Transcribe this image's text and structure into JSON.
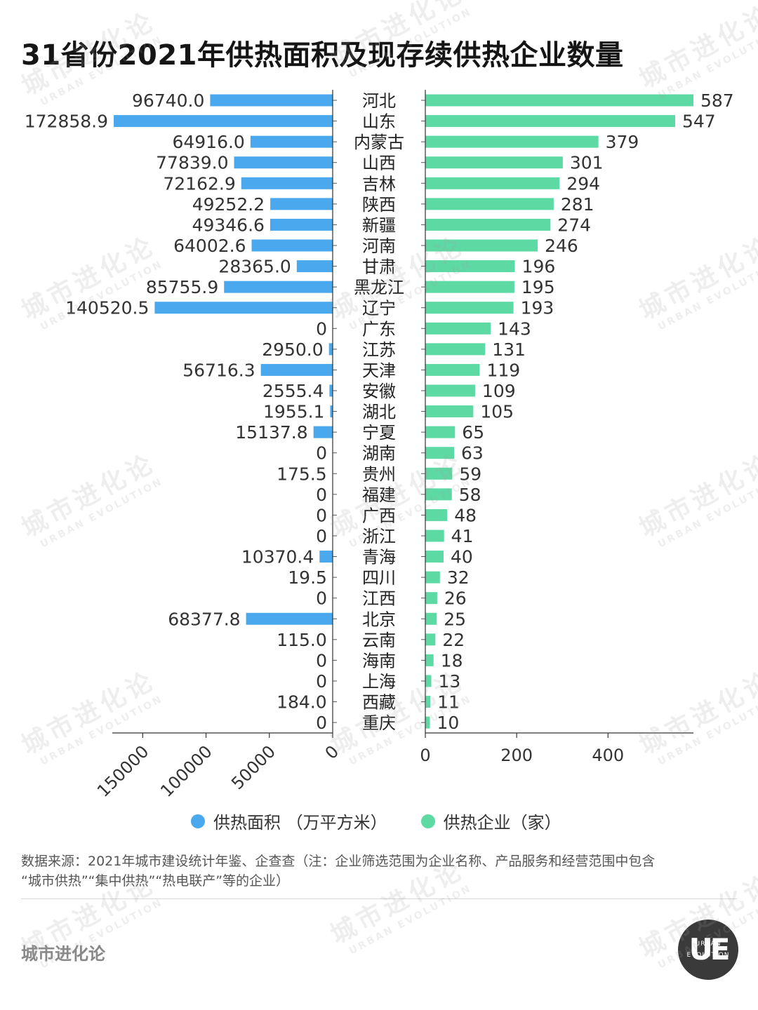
{
  "title": "31省份2021年供热面积及现存续供热企业数量",
  "chart_data": {
    "type": "bar",
    "orientation": "horizontal-butterfly",
    "categories": [
      "河北",
      "山东",
      "内蒙古",
      "山西",
      "吉林",
      "陕西",
      "新疆",
      "河南",
      "甘肃",
      "黑龙江",
      "辽宁",
      "广东",
      "江苏",
      "天津",
      "安徽",
      "湖北",
      "宁夏",
      "湖南",
      "贵州",
      "福建",
      "广西",
      "浙江",
      "青海",
      "四川",
      "江西",
      "北京",
      "云南",
      "海南",
      "上海",
      "西藏",
      "重庆"
    ],
    "series": [
      {
        "name": "供热面积 （万平方米）",
        "side": "left",
        "color": "#4aa8ee",
        "values": [
          96740.0,
          172858.9,
          64916.0,
          77839.0,
          72162.9,
          49252.2,
          49346.6,
          64002.6,
          28365.0,
          85755.9,
          140520.5,
          0,
          2950.0,
          56716.3,
          2555.4,
          1955.1,
          15137.8,
          0,
          175.5,
          0,
          0,
          0,
          10370.4,
          19.5,
          0,
          68377.8,
          115.0,
          0,
          0,
          184.0,
          0
        ],
        "labels": [
          "96740.0",
          "172858.9",
          "64916.0",
          "77839.0",
          "72162.9",
          "49252.2",
          "49346.6",
          "64002.6",
          "28365.0",
          "85755.9",
          "140520.5",
          "0",
          "2950.0",
          "56716.3",
          "2555.4",
          "1955.1",
          "15137.8",
          "0",
          "175.5",
          "0",
          "0",
          "0",
          "10370.4",
          "19.5",
          "0",
          "68377.8",
          "115.0",
          "0",
          "0",
          "184.0",
          "0"
        ],
        "axis_ticks": [
          150000,
          100000,
          50000,
          0
        ],
        "axis_tick_labels": [
          "150000",
          "100000",
          "50000",
          "0"
        ],
        "xlim": [
          0,
          174000
        ]
      },
      {
        "name": "供热企业（家）",
        "side": "right",
        "color": "#5dd9a4",
        "values": [
          587,
          547,
          379,
          301,
          294,
          281,
          274,
          246,
          196,
          195,
          193,
          143,
          131,
          119,
          109,
          105,
          65,
          63,
          59,
          58,
          48,
          41,
          40,
          32,
          26,
          25,
          22,
          18,
          13,
          11,
          10
        ],
        "labels": [
          "587",
          "547",
          "379",
          "301",
          "294",
          "281",
          "274",
          "246",
          "196",
          "195",
          "193",
          "143",
          "131",
          "119",
          "109",
          "105",
          "65",
          "63",
          "59",
          "58",
          "48",
          "41",
          "40",
          "32",
          "26",
          "25",
          "22",
          "18",
          "13",
          "11",
          "10"
        ],
        "axis_ticks": [
          0,
          200,
          400
        ],
        "axis_tick_labels": [
          "0",
          "200",
          "400"
        ],
        "xlim": [
          0,
          587
        ]
      }
    ],
    "legend_position": "bottom-center",
    "grid": false
  },
  "legend": {
    "area_label": "供热面积 （万平方米）",
    "area_color": "#4aa8ee",
    "company_label": "供热企业（家）",
    "company_color": "#5dd9a4"
  },
  "source": {
    "line1": "数据来源：2021年城市建设统计年鉴、企查查（注：企业筛选范围为企业名称、产品服务和经营范围中包含",
    "line2": "“城市供热”“集中供热”“热电联产”等的企业）"
  },
  "brand": "城市进化论",
  "logo": {
    "mark": "UE",
    "sub_top": "URBAN",
    "sub_bottom": "EVOLUTION"
  },
  "watermark": {
    "cn": "城市进化论",
    "en": "URBAN EVOLUTION"
  }
}
